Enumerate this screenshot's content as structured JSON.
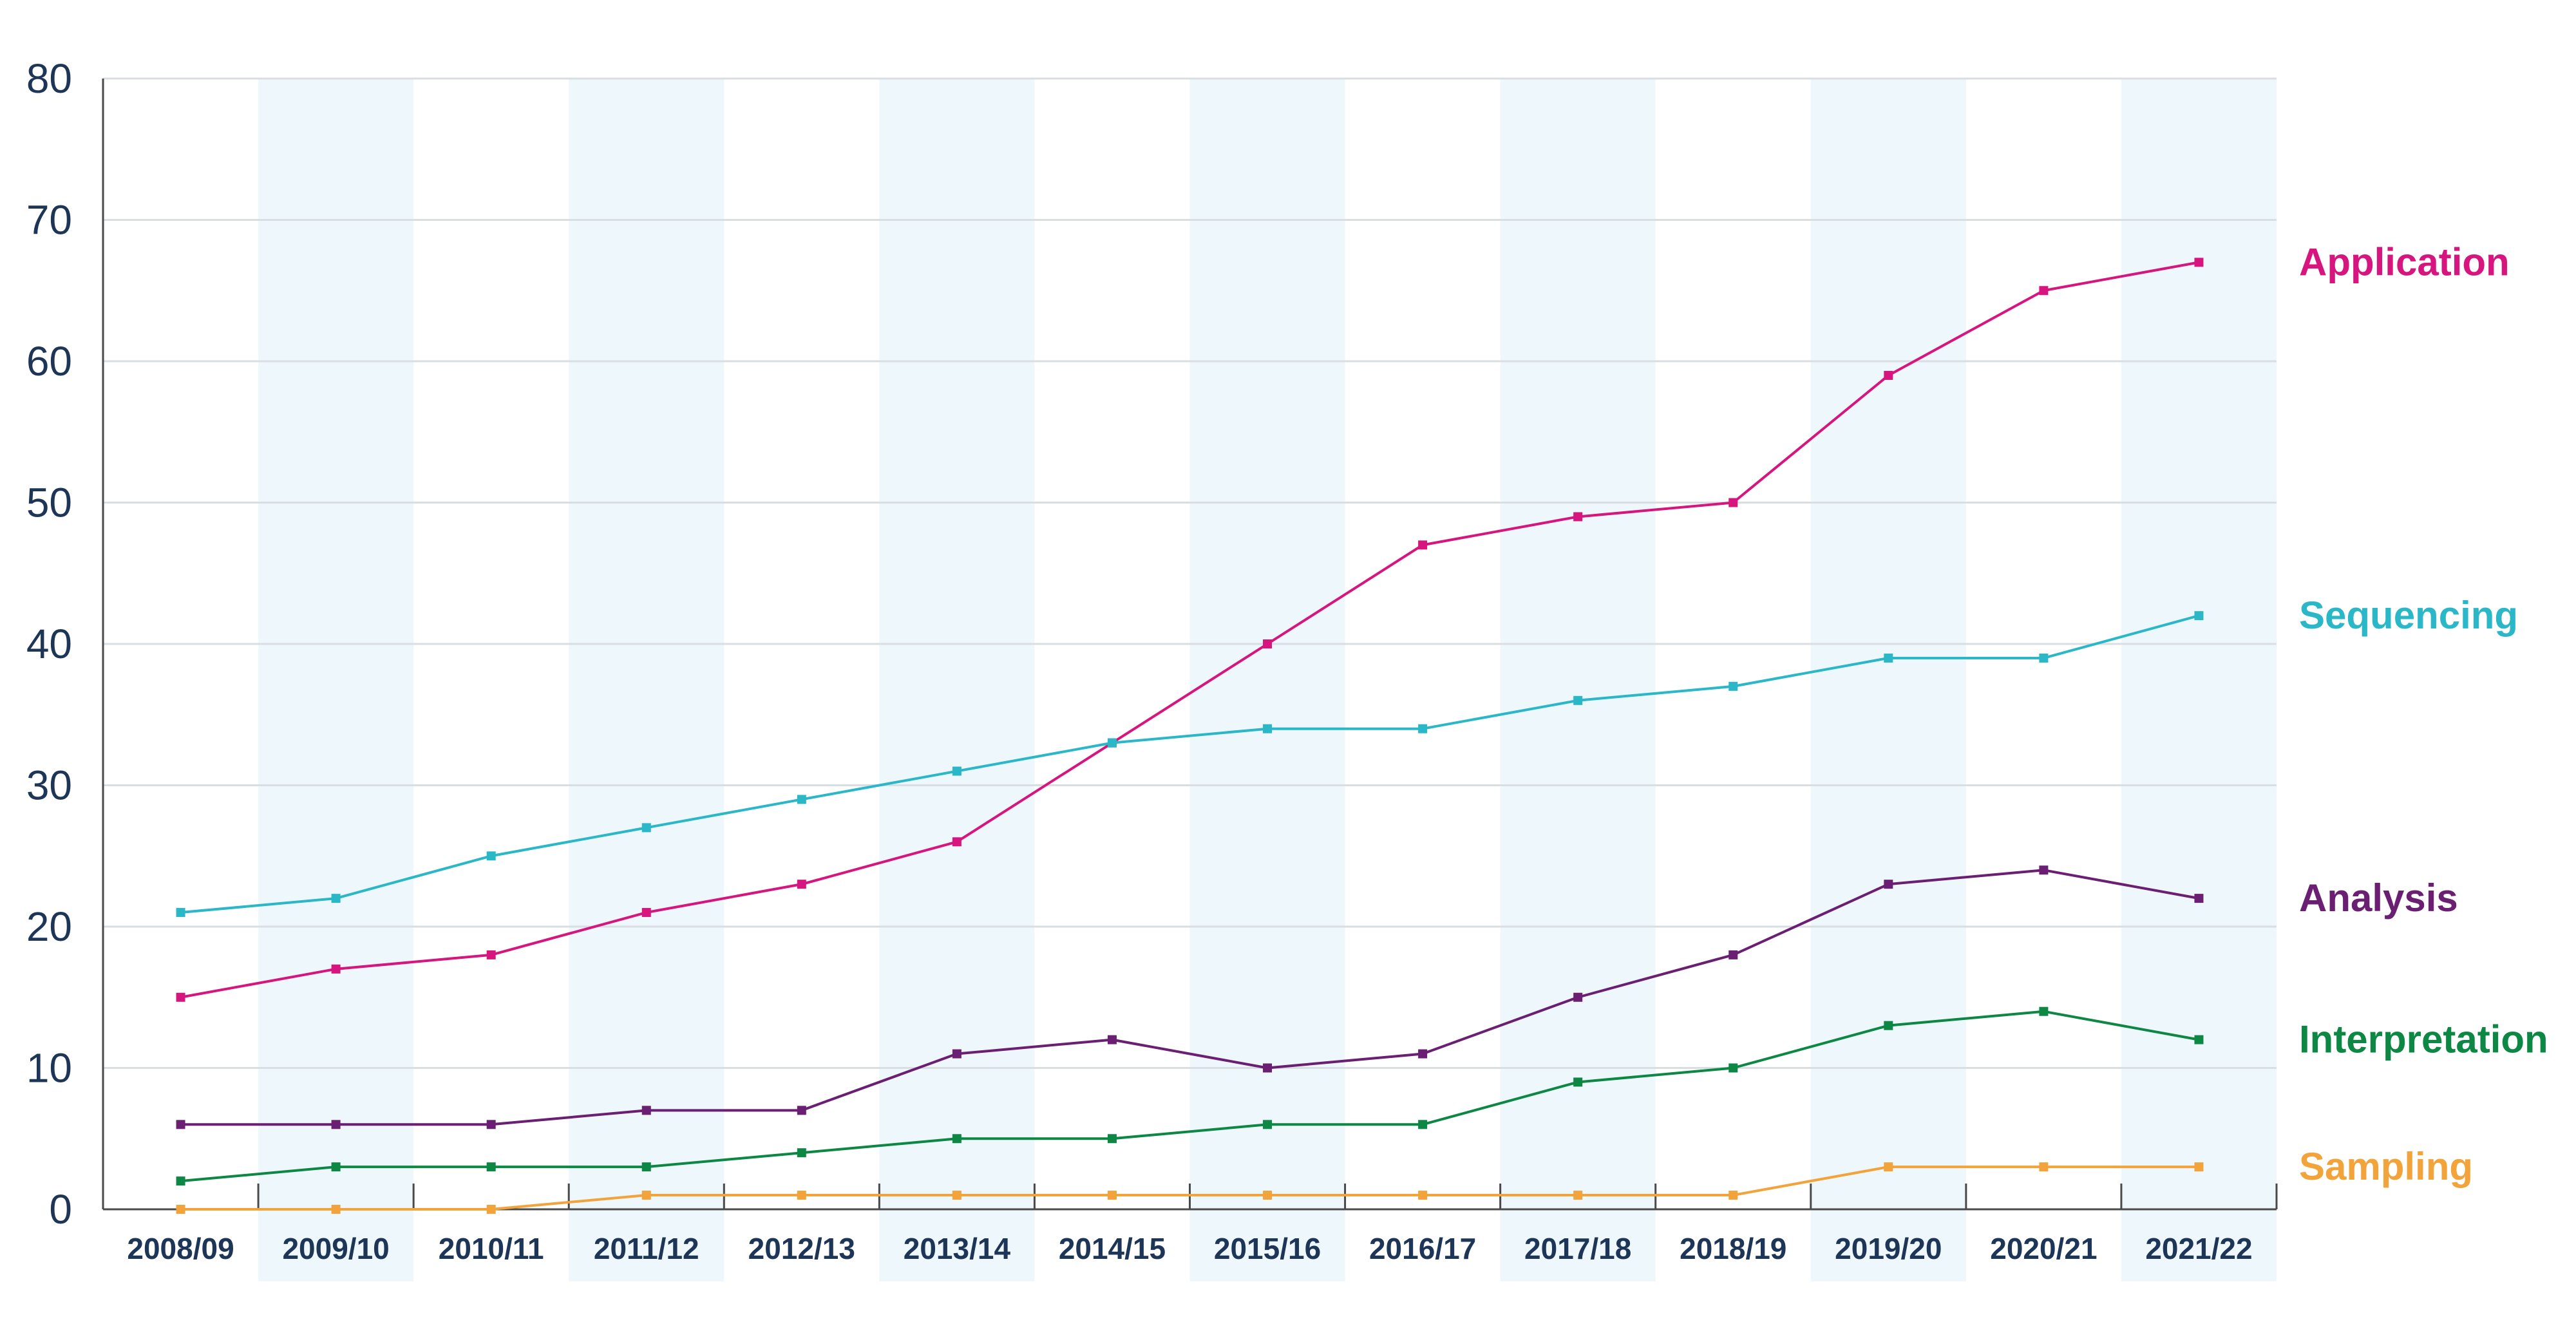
{
  "chart_data": {
    "type": "line",
    "x": [
      "2008/09",
      "2009/10",
      "2010/11",
      "2011/12",
      "2012/13",
      "2013/14",
      "2014/15",
      "2015/16",
      "2016/17",
      "2017/18",
      "2018/19",
      "2019/20",
      "2020/21",
      "2021/22"
    ],
    "ylim": [
      0,
      80
    ],
    "yticks": [
      0,
      10,
      20,
      30,
      40,
      50,
      60,
      70,
      80
    ],
    "grid": true,
    "legend": "right, labels at series ends",
    "band_color": "#eef7fb",
    "grid_color": "#d9dee3",
    "series": [
      {
        "name": "Application",
        "color": "#d6157f",
        "values": [
          15,
          17,
          18,
          21,
          23,
          26,
          33,
          40,
          47,
          49,
          50,
          59,
          65,
          67
        ]
      },
      {
        "name": "Sequencing",
        "color": "#2ab7c7",
        "values": [
          21,
          22,
          25,
          27,
          29,
          31,
          33,
          34,
          34,
          36,
          37,
          39,
          39,
          42
        ]
      },
      {
        "name": "Analysis",
        "color": "#6b1f73",
        "values": [
          6,
          6,
          6,
          7,
          7,
          11,
          12,
          10,
          11,
          15,
          18,
          23,
          24,
          22
        ]
      },
      {
        "name": "Interpretation",
        "color": "#0d8744",
        "values": [
          2,
          3,
          3,
          3,
          4,
          5,
          5,
          6,
          6,
          9,
          10,
          13,
          14,
          12
        ]
      },
      {
        "name": "Sampling",
        "color": "#f2a33a",
        "values": [
          0,
          0,
          0,
          1,
          1,
          1,
          1,
          1,
          1,
          1,
          1,
          3,
          3,
          3
        ]
      }
    ]
  }
}
